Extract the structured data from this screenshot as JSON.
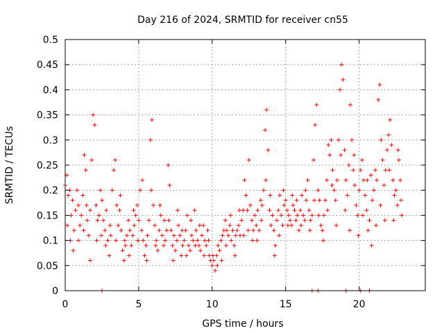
{
  "chart_data": {
    "type": "scatter",
    "title": "Day 216 of 2024, SRMTID for receiver cn55",
    "xlabel": "GPS time / hours",
    "ylabel": "SRMTID / TECUs",
    "xlim": [
      0,
      24.5
    ],
    "ylim": [
      0,
      0.5
    ],
    "grid": true,
    "x_ticks": [
      0,
      5,
      10,
      15,
      20
    ],
    "x_tick_labels": [
      "0",
      "5",
      "10",
      "15",
      "20"
    ],
    "y_ticks": [
      0,
      0.05,
      0.1,
      0.15,
      0.2,
      0.25,
      0.3,
      0.35,
      0.4,
      0.45,
      0.5
    ],
    "y_tick_labels": [
      "0",
      "0.05",
      "0.1",
      "0.15",
      "0.2",
      "0.25",
      "0.3",
      "0.35",
      "0.4",
      "0.45",
      "0.5"
    ],
    "marker": "plus",
    "color": "#ff0000",
    "series": [
      {
        "name": "SRMTID",
        "points": [
          [
            0.0,
            0.21
          ],
          [
            0.1,
            0.23
          ],
          [
            0.2,
            0.19
          ],
          [
            0.3,
            0.2
          ],
          [
            0.4,
            0.15
          ],
          [
            0.5,
            0.18
          ],
          [
            0.6,
            0.12
          ],
          [
            0.7,
            0.16
          ],
          [
            0.8,
            0.2
          ],
          [
            0.9,
            0.17
          ],
          [
            1.0,
            0.13
          ],
          [
            1.1,
            0.15
          ],
          [
            1.2,
            0.19
          ],
          [
            1.3,
            0.27
          ],
          [
            1.4,
            0.24
          ],
          [
            1.5,
            0.14
          ],
          [
            1.6,
            0.11
          ],
          [
            1.7,
            0.16
          ],
          [
            1.8,
            0.26
          ],
          [
            1.9,
            0.35
          ],
          [
            2.0,
            0.33
          ],
          [
            2.1,
            0.17
          ],
          [
            2.2,
            0.14
          ],
          [
            2.3,
            0.15
          ],
          [
            2.4,
            0.2
          ],
          [
            2.5,
            0.18
          ],
          [
            2.6,
            0.14
          ],
          [
            2.7,
            0.12
          ],
          [
            2.8,
            0.16
          ],
          [
            2.9,
            0.1
          ],
          [
            3.0,
            0.07
          ],
          [
            3.1,
            0.11
          ],
          [
            3.2,
            0.2
          ],
          [
            3.3,
            0.24
          ],
          [
            3.4,
            0.26
          ],
          [
            3.5,
            0.17
          ],
          [
            3.6,
            0.13
          ],
          [
            3.7,
            0.16
          ],
          [
            3.8,
            0.12
          ],
          [
            3.9,
            0.08
          ],
          [
            4.0,
            0.06
          ],
          [
            4.1,
            0.09
          ],
          [
            4.2,
            0.11
          ],
          [
            4.3,
            0.14
          ],
          [
            4.4,
            0.12
          ],
          [
            4.5,
            0.09
          ],
          [
            4.6,
            0.11
          ],
          [
            4.7,
            0.13
          ],
          [
            4.8,
            0.15
          ],
          [
            4.9,
            0.17
          ],
          [
            5.0,
            0.14
          ],
          [
            5.1,
            0.2
          ],
          [
            5.2,
            0.12
          ],
          [
            5.3,
            0.1
          ],
          [
            5.4,
            0.07
          ],
          [
            5.5,
            0.09
          ],
          [
            5.6,
            0.11
          ],
          [
            5.7,
            0.14
          ],
          [
            5.8,
            0.3
          ],
          [
            5.9,
            0.34
          ],
          [
            6.0,
            0.17
          ],
          [
            6.1,
            0.13
          ],
          [
            6.2,
            0.1
          ],
          [
            6.3,
            0.08
          ],
          [
            6.4,
            0.12
          ],
          [
            6.5,
            0.15
          ],
          [
            6.6,
            0.11
          ],
          [
            6.7,
            0.09
          ],
          [
            6.8,
            0.1
          ],
          [
            6.9,
            0.12
          ],
          [
            7.0,
            0.25
          ],
          [
            7.1,
            0.21
          ],
          [
            7.2,
            0.12
          ],
          [
            7.3,
            0.09
          ],
          [
            7.4,
            0.11
          ],
          [
            7.5,
            0.08
          ],
          [
            7.6,
            0.1
          ],
          [
            7.7,
            0.13
          ],
          [
            7.8,
            0.11
          ],
          [
            7.9,
            0.07
          ],
          [
            8.0,
            0.09
          ],
          [
            8.1,
            0.1
          ],
          [
            8.2,
            0.12
          ],
          [
            8.3,
            0.15
          ],
          [
            8.4,
            0.09
          ],
          [
            8.5,
            0.08
          ],
          [
            8.6,
            0.11
          ],
          [
            8.7,
            0.1
          ],
          [
            8.8,
            0.16
          ],
          [
            8.9,
            0.12
          ],
          [
            9.0,
            0.1
          ],
          [
            9.1,
            0.09
          ],
          [
            9.2,
            0.08
          ],
          [
            9.3,
            0.11
          ],
          [
            9.4,
            0.13
          ],
          [
            9.5,
            0.1
          ],
          [
            9.6,
            0.09
          ],
          [
            9.7,
            0.12
          ],
          [
            9.8,
            0.07
          ],
          [
            9.9,
            0.06
          ],
          [
            10.0,
            0.05
          ],
          [
            10.1,
            0.06
          ],
          [
            10.2,
            0.04
          ],
          [
            10.3,
            0.07
          ],
          [
            10.4,
            0.09
          ],
          [
            10.5,
            0.08
          ],
          [
            10.6,
            0.1
          ],
          [
            10.7,
            0.11
          ],
          [
            10.8,
            0.12
          ],
          [
            10.9,
            0.14
          ],
          [
            11.0,
            0.12
          ],
          [
            11.1,
            0.11
          ],
          [
            11.2,
            0.13
          ],
          [
            11.3,
            0.1
          ],
          [
            11.4,
            0.12
          ],
          [
            11.5,
            0.09
          ],
          [
            11.6,
            0.11
          ],
          [
            11.7,
            0.12
          ],
          [
            11.8,
            0.13
          ],
          [
            11.9,
            0.11
          ],
          [
            12.0,
            0.14
          ],
          [
            12.1,
            0.16
          ],
          [
            12.2,
            0.22
          ],
          [
            12.3,
            0.19
          ],
          [
            12.4,
            0.16
          ],
          [
            12.5,
            0.26
          ],
          [
            12.6,
            0.17
          ],
          [
            12.7,
            0.14
          ],
          [
            12.8,
            0.12
          ],
          [
            12.9,
            0.15
          ],
          [
            13.0,
            0.13
          ],
          [
            13.1,
            0.16
          ],
          [
            13.2,
            0.12
          ],
          [
            13.3,
            0.18
          ],
          [
            13.4,
            0.17
          ],
          [
            13.5,
            0.2
          ],
          [
            13.6,
            0.32
          ],
          [
            13.7,
            0.36
          ],
          [
            13.8,
            0.28
          ],
          [
            13.9,
            0.16
          ],
          [
            14.0,
            0.13
          ],
          [
            14.1,
            0.15
          ],
          [
            14.2,
            0.12
          ],
          [
            14.3,
            0.09
          ],
          [
            14.4,
            0.14
          ],
          [
            14.5,
            0.16
          ],
          [
            14.6,
            0.19
          ],
          [
            14.7,
            0.15
          ],
          [
            14.8,
            0.13
          ],
          [
            14.9,
            0.17
          ],
          [
            15.0,
            0.18
          ],
          [
            15.1,
            0.16
          ],
          [
            15.2,
            0.15
          ],
          [
            15.3,
            0.14
          ],
          [
            15.4,
            0.13
          ],
          [
            15.5,
            0.17
          ],
          [
            15.6,
            0.16
          ],
          [
            15.7,
            0.14
          ],
          [
            15.8,
            0.15
          ],
          [
            15.9,
            0.12
          ],
          [
            16.0,
            0.16
          ],
          [
            16.1,
            0.19
          ],
          [
            16.2,
            0.15
          ],
          [
            16.3,
            0.14
          ],
          [
            16.4,
            0.18
          ],
          [
            16.5,
            0.22
          ],
          [
            16.6,
            0.16
          ],
          [
            16.7,
            0.14
          ],
          [
            16.8,
            0.15
          ],
          [
            16.9,
            0.26
          ],
          [
            17.0,
            0.33
          ],
          [
            17.1,
            0.37
          ],
          [
            17.2,
            0.2
          ],
          [
            17.3,
            0.18
          ],
          [
            17.4,
            0.13
          ],
          [
            17.5,
            0.12
          ],
          [
            17.6,
            0.15
          ],
          [
            17.7,
            0.18
          ],
          [
            17.8,
            0.22
          ],
          [
            17.9,
            0.29
          ],
          [
            18.0,
            0.27
          ],
          [
            18.1,
            0.3
          ],
          [
            18.2,
            0.24
          ],
          [
            18.3,
            0.2
          ],
          [
            18.4,
            0.18
          ],
          [
            18.5,
            0.22
          ],
          [
            18.6,
            0.3
          ],
          [
            18.7,
            0.4
          ],
          [
            18.8,
            0.45
          ],
          [
            18.9,
            0.42
          ],
          [
            19.0,
            0.28
          ],
          [
            19.1,
            0.22
          ],
          [
            19.2,
            0.19
          ],
          [
            19.3,
            0.25
          ],
          [
            19.4,
            0.37
          ],
          [
            19.5,
            0.3
          ],
          [
            19.6,
            0.24
          ],
          [
            19.7,
            0.21
          ],
          [
            19.8,
            0.17
          ],
          [
            19.9,
            0.15
          ],
          [
            20.0,
            0.2
          ],
          [
            20.1,
            0.24
          ],
          [
            20.2,
            0.26
          ],
          [
            20.3,
            0.22
          ],
          [
            20.4,
            0.19
          ],
          [
            20.5,
            0.16
          ],
          [
            20.6,
            0.12
          ],
          [
            20.7,
            0.14
          ],
          [
            20.8,
            0.23
          ],
          [
            20.9,
            0.18
          ],
          [
            21.0,
            0.2
          ],
          [
            21.1,
            0.24
          ],
          [
            21.2,
            0.22
          ],
          [
            21.3,
            0.38
          ],
          [
            21.4,
            0.41
          ],
          [
            21.5,
            0.3
          ],
          [
            21.6,
            0.26
          ],
          [
            21.7,
            0.21
          ],
          [
            21.8,
            0.24
          ],
          [
            21.9,
            0.28
          ],
          [
            22.0,
            0.31
          ],
          [
            22.1,
            0.34
          ],
          [
            22.2,
            0.29
          ],
          [
            22.3,
            0.22
          ],
          [
            22.4,
            0.19
          ],
          [
            22.5,
            0.2
          ],
          [
            22.6,
            0.17
          ],
          [
            22.7,
            0.26
          ],
          [
            22.8,
            0.22
          ],
          [
            22.9,
            0.15
          ],
          [
            0.15,
            0.13
          ],
          [
            0.35,
            0.1
          ],
          [
            0.55,
            0.08
          ],
          [
            0.9,
            0.1
          ],
          [
            1.25,
            0.12
          ],
          [
            1.45,
            0.17
          ],
          [
            1.7,
            0.06
          ],
          [
            2.15,
            0.1
          ],
          [
            2.45,
            0.11
          ],
          [
            2.75,
            0.09
          ],
          [
            3.05,
            0.13
          ],
          [
            3.45,
            0.1
          ],
          [
            3.75,
            0.19
          ],
          [
            4.05,
            0.1
          ],
          [
            4.35,
            0.07
          ],
          [
            4.65,
            0.16
          ],
          [
            4.95,
            0.1
          ],
          [
            5.25,
            0.22
          ],
          [
            5.55,
            0.06
          ],
          [
            5.85,
            0.2
          ],
          [
            6.15,
            0.09
          ],
          [
            6.45,
            0.17
          ],
          [
            6.75,
            0.14
          ],
          [
            7.05,
            0.14
          ],
          [
            7.35,
            0.06
          ],
          [
            7.65,
            0.16
          ],
          [
            7.95,
            0.12
          ],
          [
            8.25,
            0.07
          ],
          [
            8.55,
            0.14
          ],
          [
            8.85,
            0.09
          ],
          [
            9.15,
            0.13
          ],
          [
            9.45,
            0.07
          ],
          [
            9.75,
            0.1
          ],
          [
            10.05,
            0.07
          ],
          [
            10.35,
            0.05
          ],
          [
            10.65,
            0.06
          ],
          [
            10.95,
            0.09
          ],
          [
            11.25,
            0.15
          ],
          [
            11.55,
            0.07
          ],
          [
            11.85,
            0.16
          ],
          [
            12.15,
            0.11
          ],
          [
            12.45,
            0.12
          ],
          [
            12.75,
            0.1
          ],
          [
            13.05,
            0.1
          ],
          [
            13.35,
            0.14
          ],
          [
            13.65,
            0.22
          ],
          [
            13.95,
            0.19
          ],
          [
            14.25,
            0.07
          ],
          [
            14.55,
            0.11
          ],
          [
            14.85,
            0.2
          ],
          [
            15.15,
            0.13
          ],
          [
            15.45,
            0.19
          ],
          [
            15.75,
            0.18
          ],
          [
            16.05,
            0.13
          ],
          [
            16.35,
            0.2
          ],
          [
            16.65,
            0.12
          ],
          [
            16.95,
            0.18
          ],
          [
            17.25,
            0.15
          ],
          [
            17.55,
            0.1
          ],
          [
            17.85,
            0.16
          ],
          [
            18.15,
            0.21
          ],
          [
            18.45,
            0.13
          ],
          [
            18.75,
            0.27
          ],
          [
            19.05,
            0.16
          ],
          [
            19.35,
            0.12
          ],
          [
            19.65,
            0.27
          ],
          [
            19.95,
            0.11
          ],
          [
            20.25,
            0.15
          ],
          [
            20.55,
            0.22
          ],
          [
            20.85,
            0.09
          ],
          [
            21.15,
            0.13
          ],
          [
            21.45,
            0.17
          ],
          [
            21.75,
            0.14
          ],
          [
            22.05,
            0.24
          ],
          [
            22.35,
            0.14
          ],
          [
            22.65,
            0.28
          ],
          [
            22.85,
            0.18
          ],
          [
            2.5,
            0.0
          ],
          [
            16.8,
            0.0
          ],
          [
            17.2,
            0.0
          ],
          [
            19.1,
            0.0
          ],
          [
            20.1,
            0.0
          ],
          [
            20.7,
            0.0
          ]
        ]
      }
    ]
  }
}
